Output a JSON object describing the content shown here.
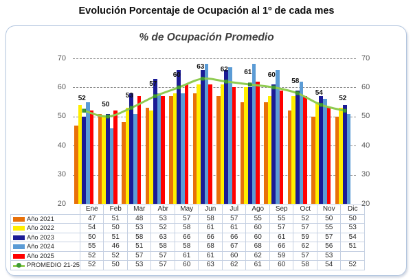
{
  "page": {
    "title": "Evolución Porcentaje de Ocupación al 1º de cada mes"
  },
  "chart_data": {
    "type": "bar",
    "title": "% de Ocupación Promedio",
    "categories": [
      "Ene",
      "Feb",
      "Mar",
      "Abr",
      "May",
      "Jun",
      "Jul",
      "Ago",
      "Sep",
      "Oct",
      "Nov",
      "Dic"
    ],
    "series": [
      {
        "name": "Año 2021",
        "type": "bar",
        "color": "#E8710A",
        "values": [
          47,
          51,
          48,
          53,
          57,
          58,
          57,
          55,
          55,
          52,
          50,
          50
        ]
      },
      {
        "name": "Año 2022",
        "type": "bar",
        "color": "#FFEE00",
        "values": [
          54,
          50,
          53,
          52,
          58,
          61,
          61,
          60,
          57,
          57,
          55,
          53
        ]
      },
      {
        "name": "Año 2023",
        "type": "bar",
        "color": "#1B1B96",
        "values": [
          50,
          51,
          58,
          63,
          66,
          66,
          66,
          60,
          61,
          59,
          57,
          54
        ]
      },
      {
        "name": "Año 2024",
        "type": "bar",
        "color": "#5B9BD5",
        "values": [
          55,
          46,
          51,
          58,
          58,
          68,
          67,
          68,
          66,
          62,
          56,
          51
        ]
      },
      {
        "name": "Año 2025",
        "type": "bar",
        "color": "#FF0000",
        "values": [
          52,
          52,
          57,
          57,
          61,
          61,
          60,
          62,
          59,
          57,
          53,
          null
        ]
      },
      {
        "name": "PROMEDIO 21-25",
        "type": "line",
        "color": "#8FCB50",
        "marker_color": "#3E9B35",
        "data_labels": true,
        "values": [
          52,
          50,
          53,
          57,
          60,
          63,
          62,
          61,
          60,
          58,
          54,
          52
        ]
      }
    ],
    "ylim": [
      20,
      70
    ],
    "y_ticks": [
      20,
      30,
      40,
      50,
      60,
      70
    ],
    "grid": "horizontal-dashed",
    "axis_tick_color": "#595959",
    "data_label_color": "#111111",
    "legend_position": "data-table-left",
    "show_data_table": true,
    "table_border_color": "#C5D0E2",
    "panel_border_color": "#B3C6DF"
  }
}
